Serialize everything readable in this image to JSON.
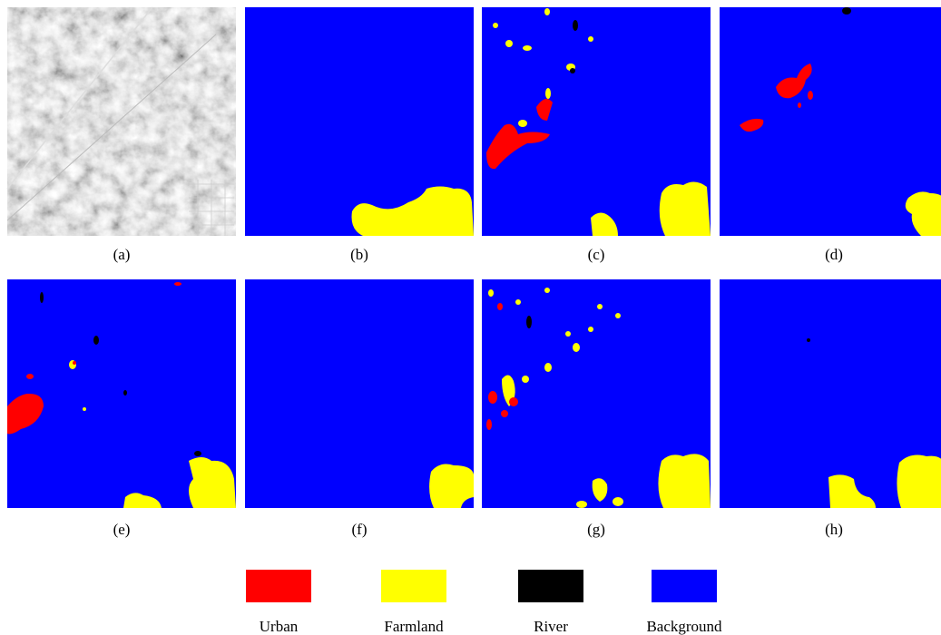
{
  "panels": [
    {
      "label": "(a)"
    },
    {
      "label": "(b)"
    },
    {
      "label": "(c)"
    },
    {
      "label": "(d)"
    },
    {
      "label": "(e)"
    },
    {
      "label": "(f)"
    },
    {
      "label": "(g)"
    },
    {
      "label": "(h)"
    }
  ],
  "legend": [
    {
      "name": "Urban",
      "color": "#ff0000"
    },
    {
      "name": "Farmland",
      "color": "#ffff00"
    },
    {
      "name": "River",
      "color": "#000000"
    },
    {
      "name": "Background",
      "color": "#0000ff"
    }
  ]
}
